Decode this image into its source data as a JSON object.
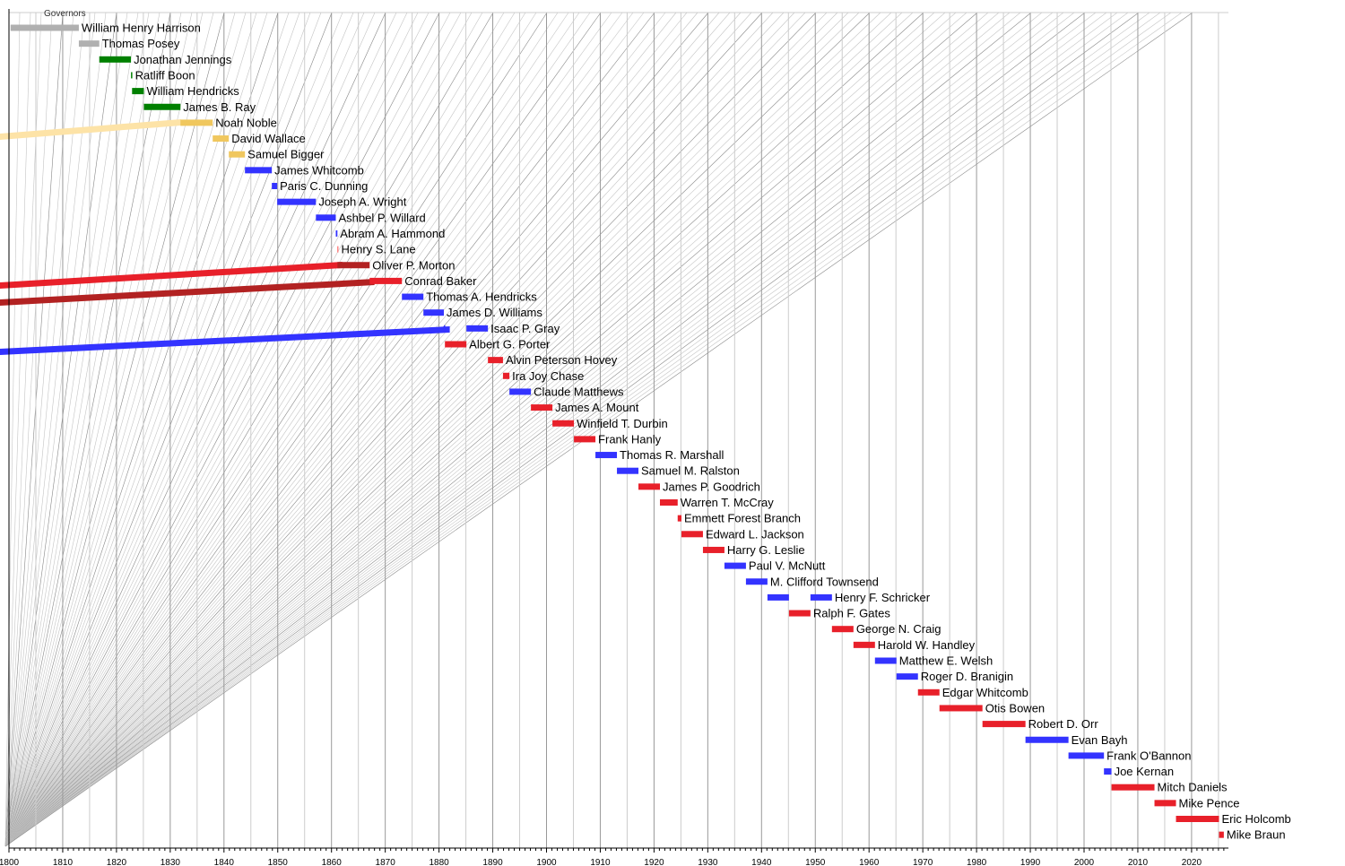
{
  "chart_data": {
    "type": "timeline",
    "title": "Governors",
    "xlim": [
      1800,
      2026
    ],
    "x_tick_labels": [
      "1800",
      "1810",
      "1820",
      "1830",
      "1840",
      "1850",
      "1860",
      "1870",
      "1880",
      "1890",
      "1900",
      "1910",
      "1920",
      "1930",
      "1940",
      "1950",
      "1960",
      "1970",
      "1980",
      "1990",
      "2000",
      "2010",
      "2020"
    ],
    "party_colors": {
      "Nonpartisan": "#b0b0b0",
      "Democratic-Republican": "#008000",
      "Whig": "#f0c75e",
      "Democratic": "#3333ff",
      "Republican": "#e8202a",
      "National Union": "#b22222"
    },
    "governors": [
      {
        "name": "William Henry Harrison",
        "party": "Nonpartisan",
        "terms": [
          [
            1800.3,
            1813
          ]
        ]
      },
      {
        "name": "Thomas Posey",
        "party": "Nonpartisan",
        "terms": [
          [
            1813,
            1816.8
          ]
        ]
      },
      {
        "name": "Jonathan Jennings",
        "party": "Democratic-Republican",
        "terms": [
          [
            1816.8,
            1822.7
          ]
        ]
      },
      {
        "name": "Ratliff Boon",
        "party": "Democratic-Republican",
        "terms": [
          [
            1822.7,
            1822.9
          ]
        ]
      },
      {
        "name": "William Hendricks",
        "party": "Democratic-Republican",
        "terms": [
          [
            1822.9,
            1825.1
          ]
        ]
      },
      {
        "name": "James B. Ray",
        "party": "Democratic-Republican",
        "terms": [
          [
            1825.1,
            1831.9
          ]
        ]
      },
      {
        "name": "Noah Noble",
        "party": "Whig",
        "terms": [
          [
            1831.9,
            1837.9
          ]
        ]
      },
      {
        "name": "David Wallace",
        "party": "Whig",
        "terms": [
          [
            1837.9,
            1840.9
          ]
        ]
      },
      {
        "name": "Samuel Bigger",
        "party": "Whig",
        "terms": [
          [
            1840.9,
            1843.9
          ]
        ]
      },
      {
        "name": "James Whitcomb",
        "party": "Democratic",
        "terms": [
          [
            1843.9,
            1848.9
          ]
        ]
      },
      {
        "name": "Paris C. Dunning",
        "party": "Democratic",
        "terms": [
          [
            1848.9,
            1849.9
          ]
        ]
      },
      {
        "name": "Joseph A. Wright",
        "party": "Democratic",
        "terms": [
          [
            1849.9,
            1857.1
          ]
        ]
      },
      {
        "name": "Ashbel P. Willard",
        "party": "Democratic",
        "terms": [
          [
            1857.1,
            1860.8
          ]
        ]
      },
      {
        "name": "Abram A. Hammond",
        "party": "Democratic",
        "terms": [
          [
            1860.8,
            1861.1
          ]
        ]
      },
      {
        "name": "Henry S. Lane",
        "party": "Republican",
        "terms": [
          [
            1861.05,
            1861.15
          ]
        ]
      },
      {
        "name": "Oliver P. Morton",
        "party": "National Union",
        "terms": [
          [
            1861.1,
            1867.1
          ]
        ]
      },
      {
        "name": "Conrad Baker",
        "party": "Republican",
        "terms": [
          [
            1867.1,
            1873.1
          ]
        ]
      },
      {
        "name": "Thomas A. Hendricks",
        "party": "Democratic",
        "terms": [
          [
            1873.1,
            1877.1
          ]
        ]
      },
      {
        "name": "James D. Williams",
        "party": "Democratic",
        "terms": [
          [
            1877.1,
            1880.9
          ]
        ]
      },
      {
        "name": "Isaac P. Gray",
        "party": "Democratic",
        "terms": [
          [
            1880.9,
            1881.1
          ],
          [
            1885.1,
            1889.1
          ]
        ]
      },
      {
        "name": "Albert G. Porter",
        "party": "Republican",
        "terms": [
          [
            1881.1,
            1885.1
          ]
        ]
      },
      {
        "name": "Alvin Peterson Hovey",
        "party": "Republican",
        "terms": [
          [
            1889.1,
            1891.9
          ]
        ]
      },
      {
        "name": "Ira Joy Chase",
        "party": "Republican",
        "terms": [
          [
            1891.9,
            1893.1
          ]
        ]
      },
      {
        "name": "Claude Matthews",
        "party": "Democratic",
        "terms": [
          [
            1893.1,
            1897.1
          ]
        ]
      },
      {
        "name": "James A. Mount",
        "party": "Republican",
        "terms": [
          [
            1897.1,
            1901.1
          ]
        ]
      },
      {
        "name": "Winfield T. Durbin",
        "party": "Republican",
        "terms": [
          [
            1901.1,
            1905.1
          ]
        ]
      },
      {
        "name": "Frank Hanly",
        "party": "Republican",
        "terms": [
          [
            1905.1,
            1909.1
          ]
        ]
      },
      {
        "name": "Thomas R. Marshall",
        "party": "Democratic",
        "terms": [
          [
            1909.1,
            1913.1
          ]
        ]
      },
      {
        "name": "Samuel M. Ralston",
        "party": "Democratic",
        "terms": [
          [
            1913.1,
            1917.1
          ]
        ]
      },
      {
        "name": "James P. Goodrich",
        "party": "Republican",
        "terms": [
          [
            1917.1,
            1921.1
          ]
        ]
      },
      {
        "name": "Warren T. McCray",
        "party": "Republican",
        "terms": [
          [
            1921.1,
            1924.4
          ]
        ]
      },
      {
        "name": "Emmett Forest Branch",
        "party": "Republican",
        "terms": [
          [
            1924.4,
            1925.1
          ]
        ]
      },
      {
        "name": "Edward L. Jackson",
        "party": "Republican",
        "terms": [
          [
            1925.1,
            1929.1
          ]
        ]
      },
      {
        "name": "Harry G. Leslie",
        "party": "Republican",
        "terms": [
          [
            1929.1,
            1933.1
          ]
        ]
      },
      {
        "name": "Paul V. McNutt",
        "party": "Democratic",
        "terms": [
          [
            1933.1,
            1937.1
          ]
        ]
      },
      {
        "name": "M. Clifford Townsend",
        "party": "Democratic",
        "terms": [
          [
            1937.1,
            1941.1
          ]
        ]
      },
      {
        "name": "Henry F. Schricker",
        "party": "Democratic",
        "terms": [
          [
            1941.1,
            1945.1
          ],
          [
            1949.1,
            1953.1
          ]
        ]
      },
      {
        "name": "Ralph F. Gates",
        "party": "Republican",
        "terms": [
          [
            1945.1,
            1949.1
          ]
        ]
      },
      {
        "name": "George N. Craig",
        "party": "Republican",
        "terms": [
          [
            1953.1,
            1957.1
          ]
        ]
      },
      {
        "name": "Harold W. Handley",
        "party": "Republican",
        "terms": [
          [
            1957.1,
            1961.1
          ]
        ]
      },
      {
        "name": "Matthew E. Welsh",
        "party": "Democratic",
        "terms": [
          [
            1961.1,
            1965.1
          ]
        ]
      },
      {
        "name": "Roger D. Branigin",
        "party": "Democratic",
        "terms": [
          [
            1965.1,
            1969.1
          ]
        ]
      },
      {
        "name": "Edgar Whitcomb",
        "party": "Republican",
        "terms": [
          [
            1969.1,
            1973.1
          ]
        ]
      },
      {
        "name": "Otis Bowen",
        "party": "Republican",
        "terms": [
          [
            1973.1,
            1981.1
          ]
        ]
      },
      {
        "name": "Robert D. Orr",
        "party": "Republican",
        "terms": [
          [
            1981.1,
            1989.1
          ]
        ]
      },
      {
        "name": "Evan Bayh",
        "party": "Democratic",
        "terms": [
          [
            1989.1,
            1997.1
          ]
        ]
      },
      {
        "name": "Frank O'Bannon",
        "party": "Democratic",
        "terms": [
          [
            1997.1,
            2003.7
          ]
        ]
      },
      {
        "name": "Joe Kernan",
        "party": "Democratic",
        "terms": [
          [
            2003.7,
            2005.1
          ]
        ]
      },
      {
        "name": "Mitch Daniels",
        "party": "Republican",
        "terms": [
          [
            2005.1,
            2013.1
          ]
        ]
      },
      {
        "name": "Mike Pence",
        "party": "Republican",
        "terms": [
          [
            2013.1,
            2017.1
          ]
        ]
      },
      {
        "name": "Eric Holcomb",
        "party": "Republican",
        "terms": [
          [
            2017.1,
            2025.1
          ]
        ]
      },
      {
        "name": "Mike Braun",
        "party": "Republican",
        "terms": [
          [
            2025.1,
            2026
          ]
        ]
      }
    ]
  }
}
